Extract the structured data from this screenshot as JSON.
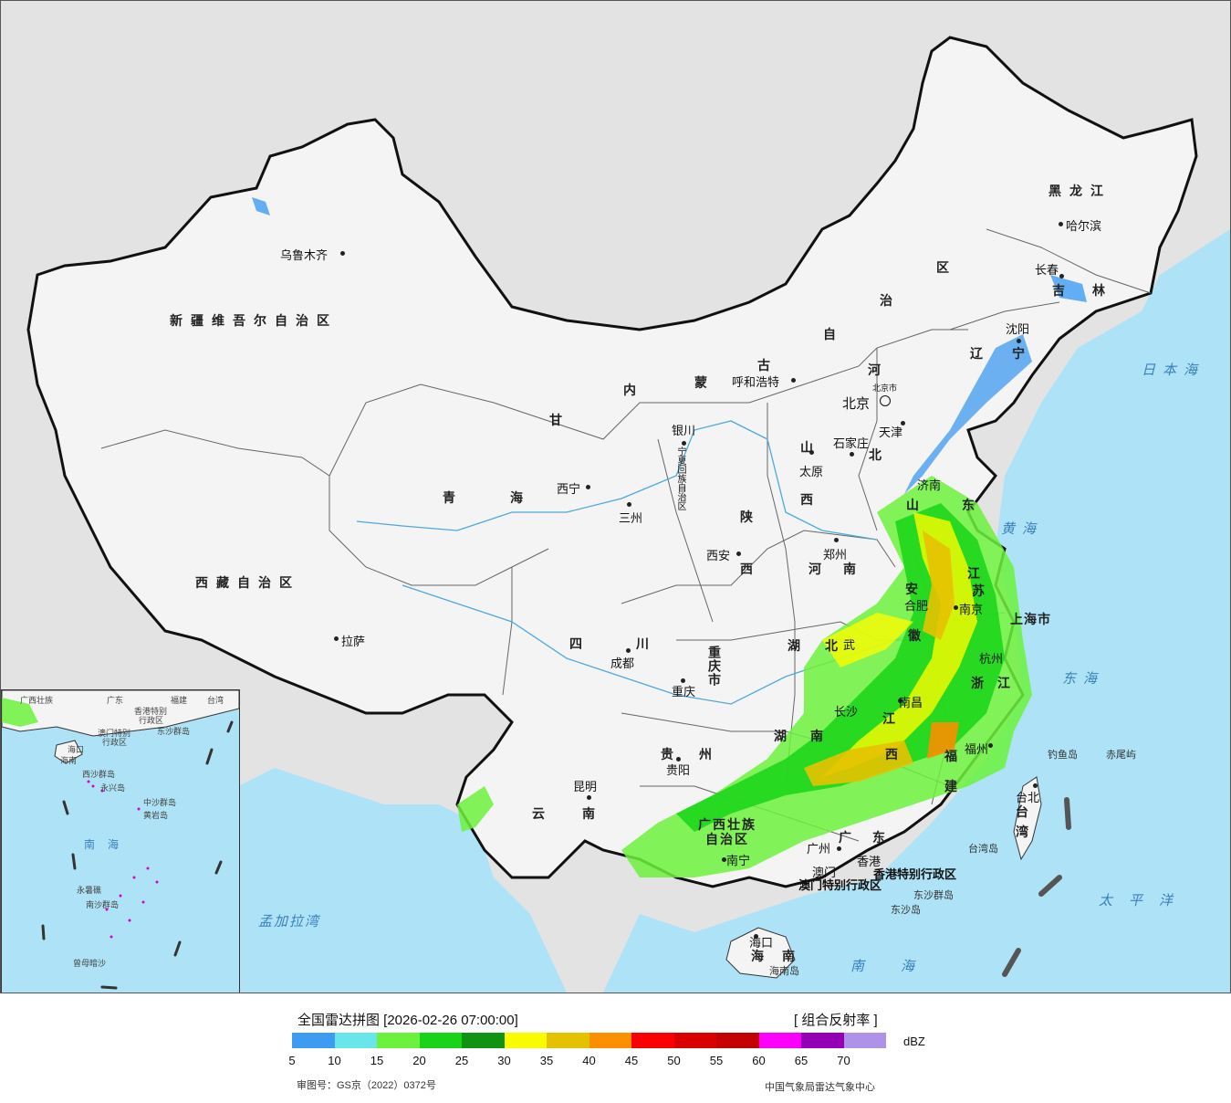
{
  "map": {
    "capital_label": "北京",
    "capital_sub": "北京市",
    "provinces": {
      "xinjiang": "新疆维吾尔自治区",
      "xizang": "西藏自治区",
      "qinghai": [
        "青",
        "海"
      ],
      "gansu": "甘",
      "sichuan": [
        "四",
        "川"
      ],
      "yunnan": [
        "云",
        "南"
      ],
      "neimenggu": [
        "内",
        "蒙",
        "古",
        "自",
        "治",
        "区"
      ],
      "heilongjiang": "黑龙江",
      "jilin": [
        "吉",
        "林"
      ],
      "liaoning": [
        "辽",
        "宁"
      ],
      "hebei": [
        "河",
        "北"
      ],
      "shanxi": [
        "山",
        "西"
      ],
      "shaanxi": [
        "陕",
        "西"
      ],
      "henan": [
        "河",
        "南"
      ],
      "shandong": [
        "山",
        "东"
      ],
      "jiangsu": [
        "江",
        "苏"
      ],
      "anhui": [
        "安",
        "徽"
      ],
      "hubei": [
        "湖",
        "北"
      ],
      "hunan": [
        "湖",
        "南"
      ],
      "jiangxi": [
        "江",
        "西"
      ],
      "zhejiang": [
        "浙",
        "江"
      ],
      "fujian": [
        "福",
        "建"
      ],
      "guangdong": [
        "广",
        "东"
      ],
      "guangxi": [
        "广西壮族",
        "自治区"
      ],
      "guizhou": [
        "贵",
        "州"
      ],
      "chongqing": "重庆市",
      "ningxia": "宁夏回族自治区",
      "hainan": [
        "海",
        "南"
      ],
      "shanghai": "上海市",
      "tianjin": "天津",
      "taiwan": [
        "台",
        "湾"
      ],
      "hk": "香港特别行政区",
      "macau": "澳门特别行政区"
    },
    "cities": {
      "urumqi": "乌鲁木齐",
      "lhasa": "拉萨",
      "xining": "西宁",
      "lanzhou": "三州",
      "yinchuan": "银川",
      "hohhot": "呼和浩特",
      "harbin": "哈尔滨",
      "changchun": "长春",
      "shenyang": "沈阳",
      "shijiazhuang": "石家庄",
      "taiyuan": "太原",
      "xian": "西安",
      "zhengzhou": "郑州",
      "chengdu": "成都",
      "chongqing": "重庆",
      "guiyang": "贵阳",
      "kunming": "昆明",
      "nanning": "南宁",
      "guangzhou": "广州",
      "hongkong": "香港",
      "macao": "澳门",
      "haikou": "海口",
      "fuzhou": "福州",
      "nanchang": "南昌",
      "hefei": "合肥",
      "nanjing": "南京",
      "hangzhou": "杭州",
      "wuhan": "武",
      "changsha": "长沙",
      "jinan": "济南",
      "taipei": "台北"
    },
    "seas": {
      "japan_sea": "日本海",
      "yellow_sea": "黄海",
      "east_sea": "东海",
      "pacific": "太平洋",
      "south_sea": "南海",
      "bengal": "孟加拉湾"
    },
    "islands": {
      "diaoyu": "钓鱼岛",
      "chiwei": "赤尾屿",
      "taiwan_island": "台湾岛",
      "dongsha_islands": "东沙群岛",
      "dongsha_island": "东沙岛",
      "hainan_island": "海南岛"
    },
    "inset": {
      "labels": [
        "广西壮族",
        "广东",
        "福建",
        "台湾",
        "香港特别",
        "行政区",
        "澳门特别",
        "行政区",
        "东沙群岛",
        "海口",
        "海南",
        "西沙群岛",
        "永兴岛",
        "中沙群岛",
        "黄岩岛",
        "南海",
        "南沙群岛",
        "永暑礁",
        "曾母暗沙"
      ]
    }
  },
  "legend": {
    "title": "全国雷达拼图 [2026-02-26 07:00:00]",
    "product": "[ 组合反射率 ]",
    "unit": "dBZ",
    "colors": [
      "#3d9bf2",
      "#69e6ea",
      "#6cf23d",
      "#19d319",
      "#109310",
      "#fbfb00",
      "#e5c200",
      "#fa8f00",
      "#fb0000",
      "#d90000",
      "#c40000",
      "#fb00fb",
      "#9500b4",
      "#ae92ea"
    ],
    "ticks": [
      "5",
      "10",
      "15",
      "20",
      "25",
      "30",
      "35",
      "40",
      "45",
      "50",
      "55",
      "60",
      "65",
      "70"
    ],
    "review_no": "审图号：GS京（2022）0372号",
    "source": "中国气象局雷达气象中心"
  }
}
